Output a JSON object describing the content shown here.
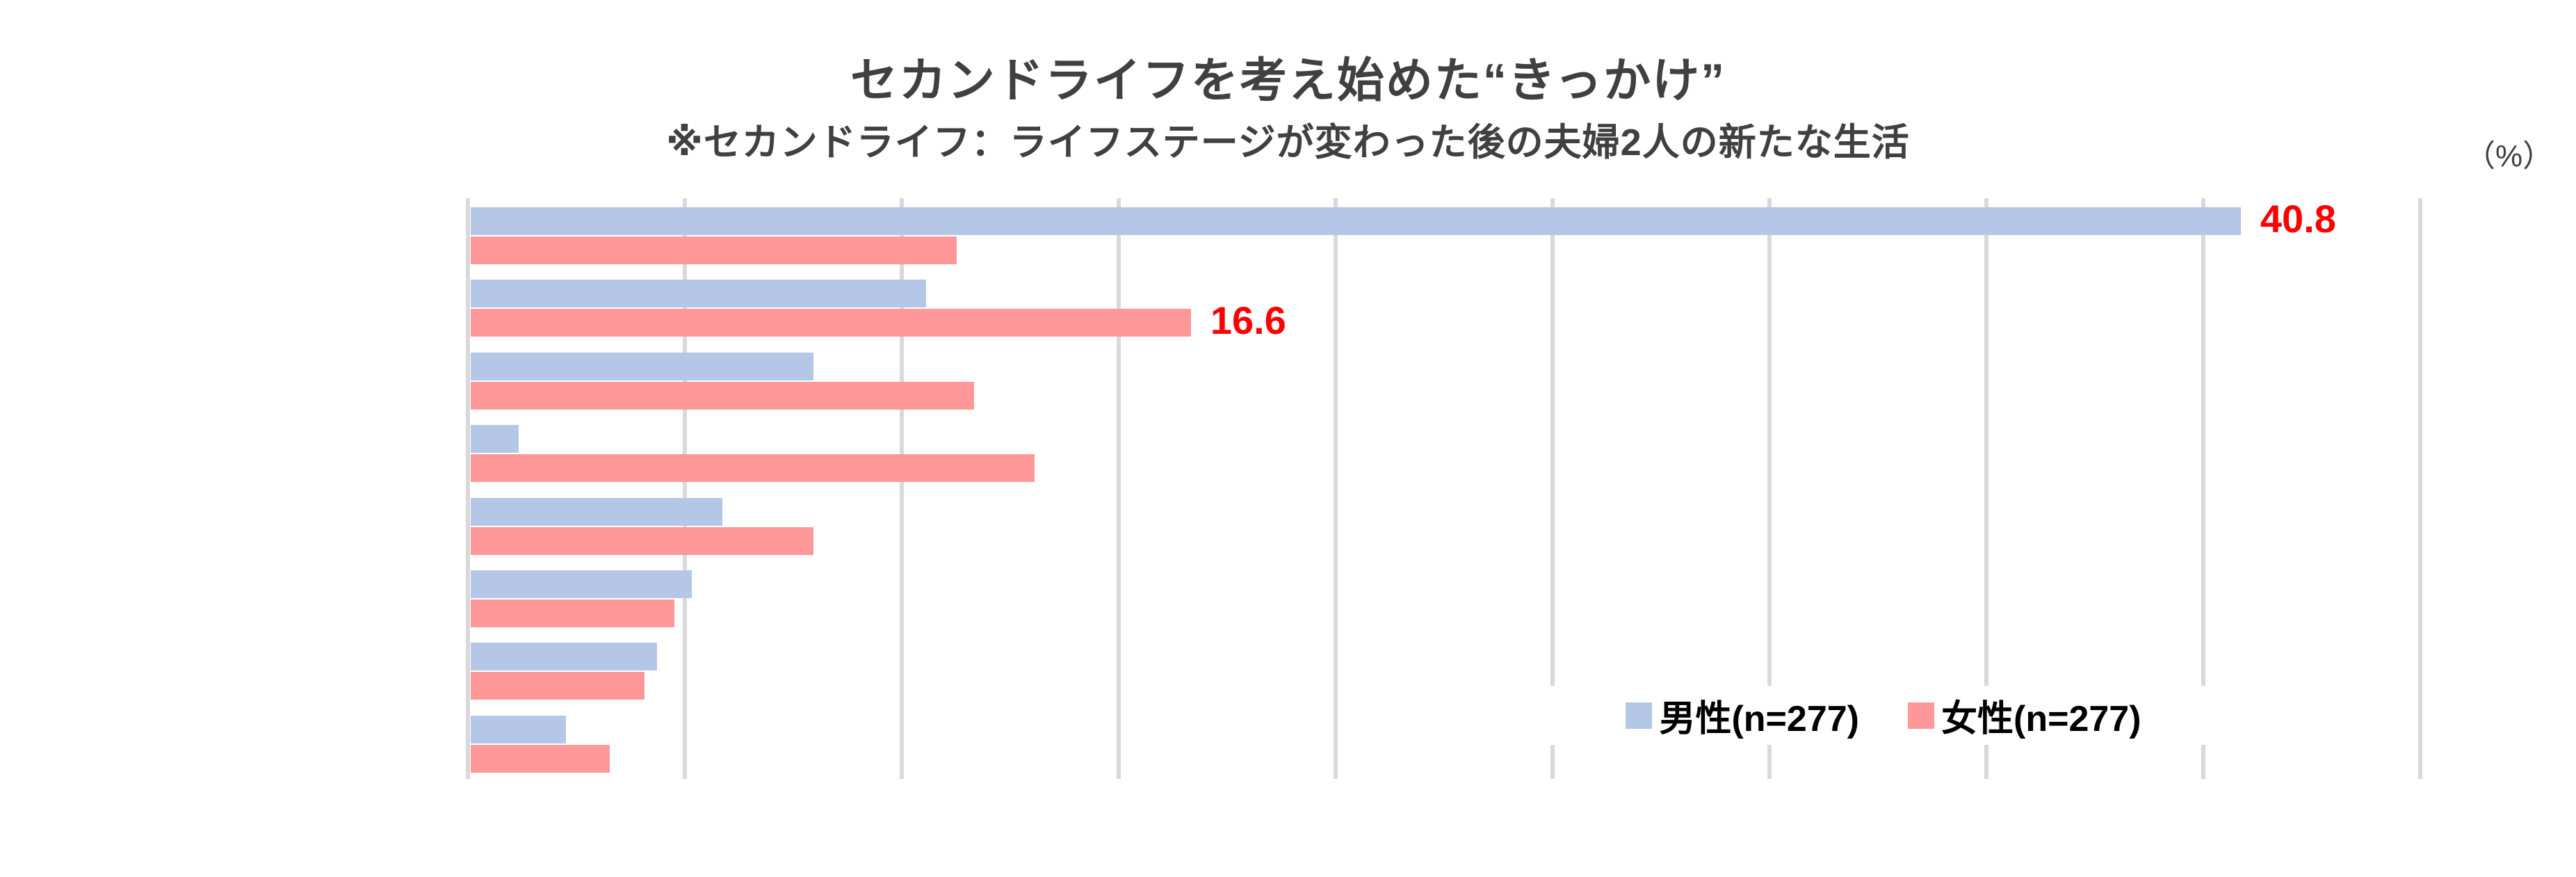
{
  "page": {
    "background": "#FFFFFF"
  },
  "chart_data": {
    "type": "bar",
    "orientation": "horizontal",
    "title": "セカンドライフを考え始めた“きっかけ”",
    "subtitle": "※セカンドライフ：ライフステージが変わった後の夫婦2人の新たな生活",
    "unit_label": "（%）",
    "title_color": "#404040",
    "categories": [
      "",
      "",
      "",
      "",
      "",
      "",
      "",
      ""
    ],
    "category_axis_labels_visible": false,
    "series": [
      {
        "name": "男性(n=277)",
        "color": "#B4C7E7",
        "values": [
          40.8,
          10.5,
          7.9,
          1.1,
          5.8,
          5.1,
          4.3,
          2.2
        ]
      },
      {
        "name": "女性(n=277)",
        "color": "#FF9999",
        "values": [
          11.2,
          16.6,
          11.6,
          13.0,
          7.9,
          4.7,
          4.0,
          3.2
        ]
      }
    ],
    "xlim": [
      0,
      45
    ],
    "gridline_step": 5,
    "grid_color": "#D9D9D9",
    "grid_on": true,
    "legend_position": "inside-bottom-right",
    "legend_background": "#FFFFFF",
    "value_labels": [
      {
        "series": 0,
        "category_index": 0,
        "text": "40.8",
        "color": "#FF0000"
      },
      {
        "series": 1,
        "category_index": 1,
        "text": "16.6",
        "color": "#FF0000"
      }
    ]
  }
}
